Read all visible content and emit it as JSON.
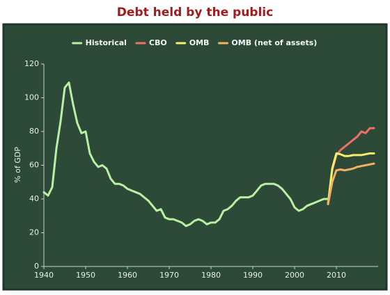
{
  "chart_data": {
    "type": "line",
    "title": "Debt held by the public",
    "y_label": "% of GDP",
    "xlim": [
      1940,
      2020
    ],
    "ylim": [
      0,
      120
    ],
    "xticks": [
      1940,
      1950,
      1960,
      1970,
      1980,
      1990,
      2000,
      2010
    ],
    "yticks": [
      0,
      20,
      40,
      60,
      80,
      100,
      120
    ],
    "grid": false,
    "legend": "top",
    "series": [
      {
        "name": "Historical",
        "color": "#b9f0a2",
        "x": [
          1940,
          1941,
          1942,
          1943,
          1944,
          1945,
          1946,
          1947,
          1948,
          1949,
          1950,
          1951,
          1952,
          1953,
          1954,
          1955,
          1956,
          1957,
          1958,
          1959,
          1960,
          1961,
          1962,
          1963,
          1964,
          1965,
          1966,
          1967,
          1968,
          1969,
          1970,
          1971,
          1972,
          1973,
          1974,
          1975,
          1976,
          1977,
          1978,
          1979,
          1980,
          1981,
          1982,
          1983,
          1984,
          1985,
          1986,
          1987,
          1988,
          1989,
          1990,
          1991,
          1992,
          1993,
          1994,
          1995,
          1996,
          1997,
          1998,
          1999,
          2000,
          2001,
          2002,
          2003,
          2004,
          2005,
          2006,
          2007,
          2008
        ],
        "values": [
          44,
          42,
          47,
          70,
          86,
          106,
          109,
          96,
          85,
          79,
          80,
          67,
          62,
          59,
          60,
          58,
          52,
          49,
          49,
          48,
          46,
          45,
          44,
          43,
          41,
          39,
          36,
          33,
          34,
          29,
          28,
          28,
          27,
          26,
          24,
          25,
          27,
          28,
          27,
          25,
          26,
          26,
          28,
          33,
          34,
          36,
          39,
          41,
          41,
          41,
          42,
          45,
          48,
          49,
          49,
          49,
          48,
          46,
          43,
          40,
          35,
          33,
          34,
          36,
          37,
          38,
          39,
          40,
          40
        ]
      },
      {
        "name": "CBO",
        "color": "#f07068",
        "x": [
          2008,
          2009,
          2010,
          2011,
          2012,
          2013,
          2014,
          2015,
          2016,
          2017,
          2018,
          2019
        ],
        "values": [
          37,
          57,
          66,
          69,
          71,
          73,
          75,
          77,
          80,
          79,
          82,
          82
        ]
      },
      {
        "name": "OMB",
        "color": "#f4f06a",
        "x": [
          2008,
          2009,
          2010,
          2011,
          2012,
          2013,
          2014,
          2015,
          2016,
          2017,
          2018,
          2019
        ],
        "values": [
          37,
          58,
          67,
          66.5,
          65.5,
          65.5,
          66,
          66,
          66,
          66.5,
          67,
          67
        ]
      },
      {
        "name": "OMB (net of assets)",
        "color": "#f2b262",
        "x": [
          2008,
          2009,
          2010,
          2011,
          2012,
          2013,
          2014,
          2015,
          2016,
          2017,
          2018,
          2019
        ],
        "values": [
          37,
          50,
          57,
          57.5,
          57,
          57.5,
          58,
          59,
          59.5,
          60,
          60.5,
          61
        ]
      }
    ]
  }
}
